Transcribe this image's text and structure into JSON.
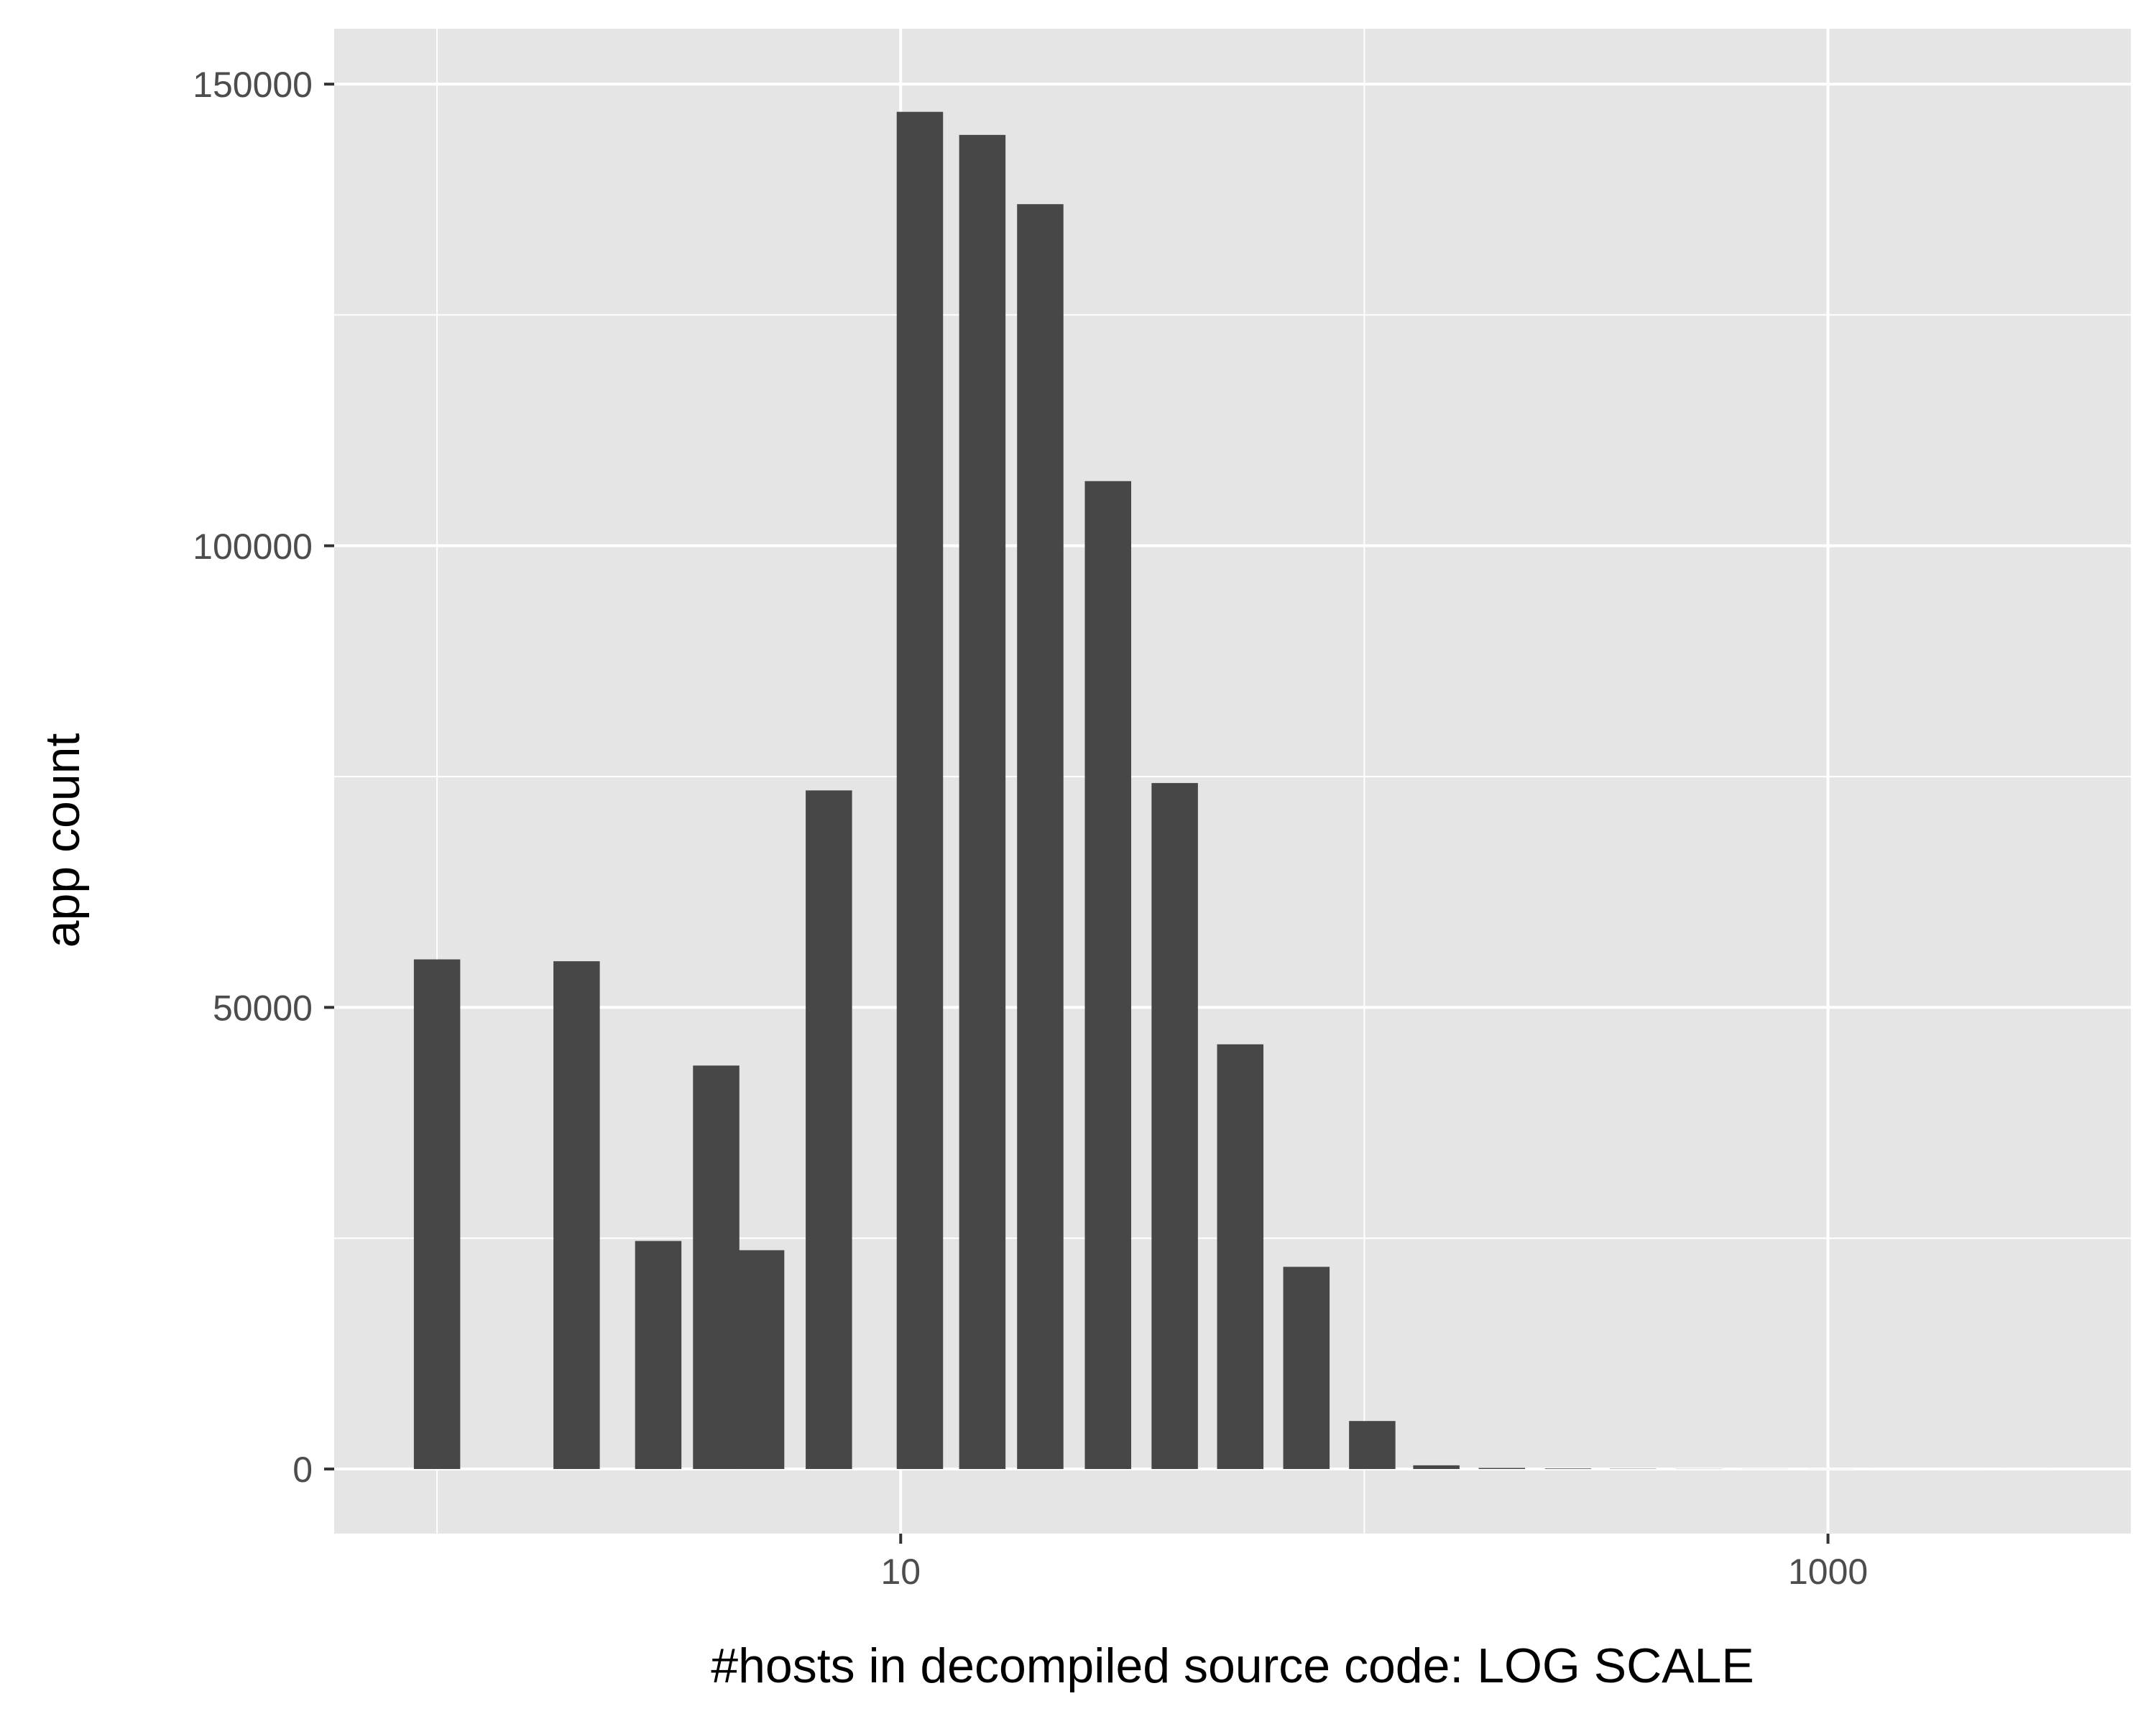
{
  "colors": {
    "panel_background": "#e5e5e5",
    "grid_line": "#ffffff",
    "bar_fill": "#474747",
    "tick_label": "#4d4d4d",
    "axis_title": "#000000",
    "page_background": "#ffffff"
  },
  "chart_data": {
    "type": "bar",
    "histogram": true,
    "title": "",
    "xlabel": "#hosts in decompiled source code: LOG SCALE",
    "ylabel": "app count",
    "x_scale": "log10",
    "x_range": [
      0.6,
      4500
    ],
    "y_range": [
      -7000,
      156000
    ],
    "x_ticks": [
      10,
      1000
    ],
    "x_tick_labels": [
      "10",
      "1000"
    ],
    "x_minor_ticks": [
      1,
      100,
      10000
    ],
    "y_ticks": [
      0,
      50000,
      100000,
      150000
    ],
    "y_tick_labels": [
      "0",
      "50000",
      "100000",
      "150000"
    ],
    "y_minor_ticks": [
      25000,
      75000,
      125000
    ],
    "grid": true,
    "bins": [
      {
        "x": 1,
        "count": 55200
      },
      {
        "x": 2,
        "count": 55000
      },
      {
        "x": 3,
        "count": 24700
      },
      {
        "x": 4,
        "count": 43700
      },
      {
        "x": 5,
        "count": 23700
      },
      {
        "x": 7,
        "count": 73500
      },
      {
        "x": 11,
        "count": 147000
      },
      {
        "x": 15,
        "count": 144500
      },
      {
        "x": 20,
        "count": 137000
      },
      {
        "x": 28,
        "count": 107000
      },
      {
        "x": 39,
        "count": 74300
      },
      {
        "x": 54,
        "count": 46000
      },
      {
        "x": 75,
        "count": 21900
      },
      {
        "x": 104,
        "count": 5200
      },
      {
        "x": 143,
        "count": 400
      },
      {
        "x": 198,
        "count": 120
      },
      {
        "x": 275,
        "count": 60
      },
      {
        "x": 380,
        "count": 30
      },
      {
        "x": 527,
        "count": 15
      },
      {
        "x": 730,
        "count": 8
      },
      {
        "x": 1011,
        "count": 5
      },
      {
        "x": 1400,
        "count": 3
      },
      {
        "x": 1938,
        "count": 2
      },
      {
        "x": 2684,
        "count": 1
      }
    ]
  }
}
